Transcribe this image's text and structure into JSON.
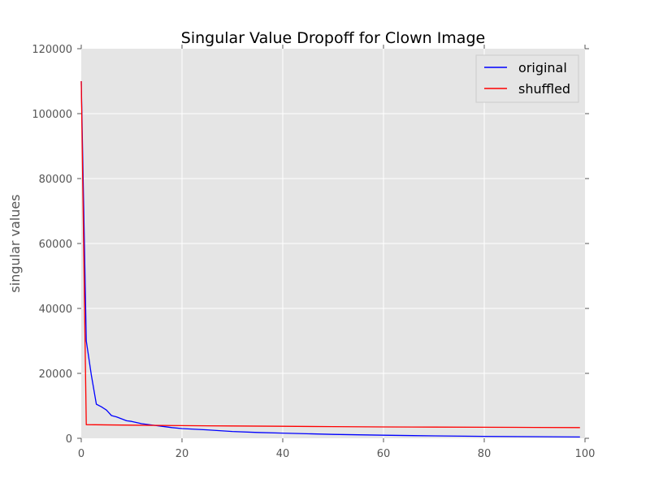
{
  "chart_data": {
    "type": "line",
    "title": "Singular Value Dropoff for Clown Image",
    "xlabel": "",
    "ylabel": "singular values",
    "xlim": [
      0,
      100
    ],
    "ylim": [
      0,
      120000
    ],
    "xticks": [
      0,
      20,
      40,
      60,
      80,
      100
    ],
    "yticks": [
      0,
      20000,
      40000,
      60000,
      80000,
      100000,
      120000
    ],
    "xtick_labels": [
      "0",
      "20",
      "40",
      "60",
      "80",
      "100"
    ],
    "ytick_labels": [
      "0",
      "20000",
      "40000",
      "60000",
      "80000",
      "100000",
      "120000"
    ],
    "grid": true,
    "background": "#e5e5e5",
    "legend_position": "top-right",
    "series": [
      {
        "name": "original",
        "color": "#0000ff",
        "x": [
          0,
          1,
          2,
          3,
          4,
          5,
          6,
          7,
          8,
          9,
          10,
          12,
          14,
          16,
          18,
          20,
          25,
          30,
          35,
          40,
          50,
          60,
          70,
          80,
          90,
          99
        ],
        "y": [
          110000,
          30000,
          19500,
          10500,
          9700,
          8700,
          7000,
          6600,
          6000,
          5400,
          5200,
          4500,
          4100,
          3700,
          3300,
          3000,
          2600,
          2100,
          1800,
          1600,
          1200,
          950,
          750,
          600,
          500,
          400
        ]
      },
      {
        "name": "shuffled",
        "color": "#ff0000",
        "x": [
          0,
          1,
          10,
          20,
          30,
          40,
          50,
          60,
          70,
          80,
          90,
          99
        ],
        "y": [
          110000,
          4200,
          4050,
          3900,
          3800,
          3700,
          3600,
          3500,
          3450,
          3400,
          3350,
          3300
        ]
      }
    ]
  }
}
